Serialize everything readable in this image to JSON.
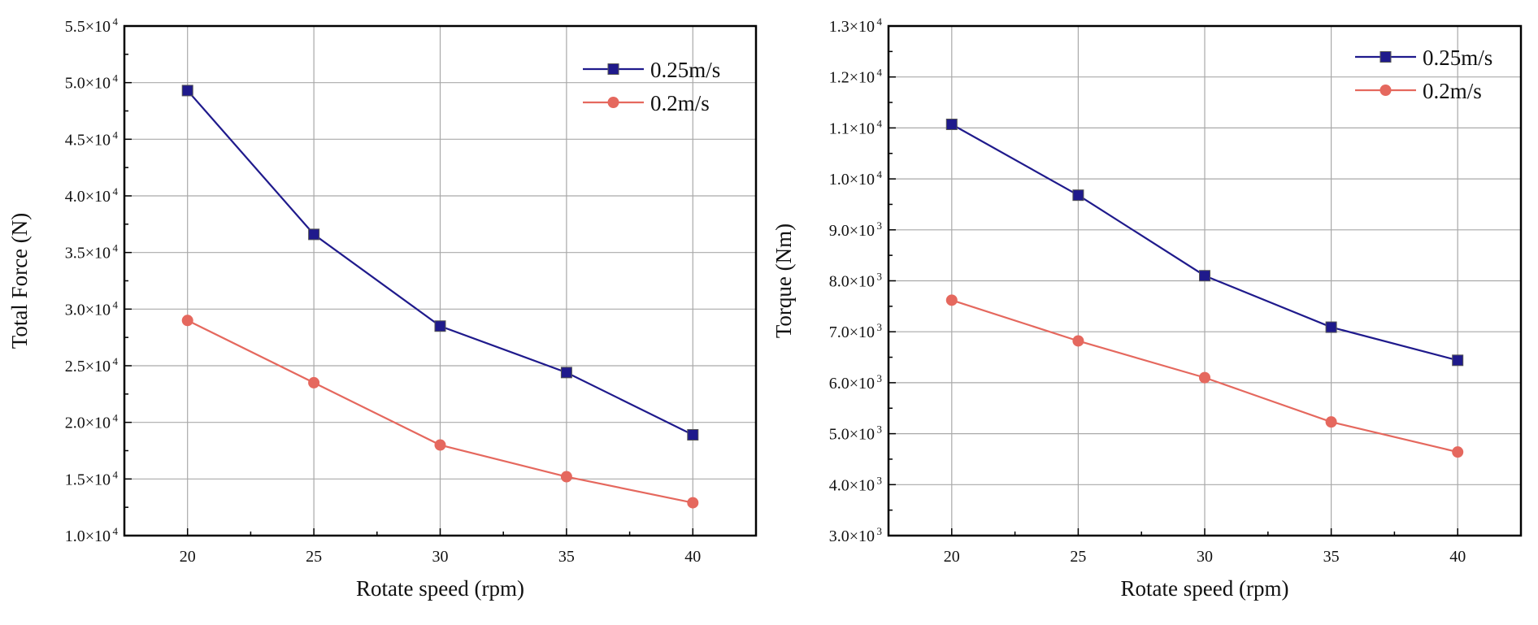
{
  "chart_data": [
    {
      "type": "line",
      "title": "",
      "xlabel": "Rotate speed (rpm)",
      "ylabel": "Total Force (N)",
      "x": [
        20,
        25,
        30,
        35,
        40
      ],
      "xlim": [
        17.5,
        42.5
      ],
      "xticks": [
        20,
        25,
        30,
        35,
        40
      ],
      "ylim": [
        10000,
        55000
      ],
      "yticks": [
        10000,
        15000,
        20000,
        25000,
        30000,
        35000,
        40000,
        45000,
        50000,
        55000
      ],
      "ytick_labels": [
        {
          "mant": "1.0×10",
          "exp": "4"
        },
        {
          "mant": "1.5×10",
          "exp": "4"
        },
        {
          "mant": "2.0×10",
          "exp": "4"
        },
        {
          "mant": "2.5×10",
          "exp": "4"
        },
        {
          "mant": "3.0×10",
          "exp": "4"
        },
        {
          "mant": "3.5×10",
          "exp": "4"
        },
        {
          "mant": "4.0×10",
          "exp": "4"
        },
        {
          "mant": "4.5×10",
          "exp": "4"
        },
        {
          "mant": "5.0×10",
          "exp": "4"
        },
        {
          "mant": "5.5×10",
          "exp": "4"
        }
      ],
      "grid": true,
      "legend_position": "top-right",
      "series": [
        {
          "name": "0.25m/s",
          "marker": "square",
          "color": "#1f1a8c",
          "values": [
            49300,
            36600,
            28500,
            24400,
            18900
          ]
        },
        {
          "name": "0.2m/s",
          "marker": "circle",
          "color": "#e5685e",
          "values": [
            29000,
            23500,
            18000,
            15200,
            12900
          ]
        }
      ]
    },
    {
      "type": "line",
      "title": "",
      "xlabel": "Rotate speed (rpm)",
      "ylabel": "Torque (Nm)",
      "x": [
        20,
        25,
        30,
        35,
        40
      ],
      "xlim": [
        17.5,
        42.5
      ],
      "xticks": [
        20,
        25,
        30,
        35,
        40
      ],
      "ylim": [
        3000,
        13000
      ],
      "yticks": [
        3000,
        4000,
        5000,
        6000,
        7000,
        8000,
        9000,
        10000,
        11000,
        12000,
        13000
      ],
      "ytick_labels": [
        {
          "mant": "3.0×10",
          "exp": "3"
        },
        {
          "mant": "4.0×10",
          "exp": "3"
        },
        {
          "mant": "5.0×10",
          "exp": "3"
        },
        {
          "mant": "6.0×10",
          "exp": "3"
        },
        {
          "mant": "7.0×10",
          "exp": "3"
        },
        {
          "mant": "8.0×10",
          "exp": "3"
        },
        {
          "mant": "9.0×10",
          "exp": "3"
        },
        {
          "mant": "1.0×10",
          "exp": "4"
        },
        {
          "mant": "1.1×10",
          "exp": "4"
        },
        {
          "mant": "1.2×10",
          "exp": "4"
        },
        {
          "mant": "1.3×10",
          "exp": "4"
        }
      ],
      "grid": true,
      "legend_position": "top-right",
      "series": [
        {
          "name": "0.25m/s",
          "marker": "square",
          "color": "#1f1a8c",
          "values": [
            11070,
            9680,
            8100,
            7090,
            6440
          ]
        },
        {
          "name": "0.2m/s",
          "marker": "circle",
          "color": "#e5685e",
          "values": [
            7620,
            6820,
            6100,
            5230,
            4640
          ]
        }
      ]
    }
  ]
}
